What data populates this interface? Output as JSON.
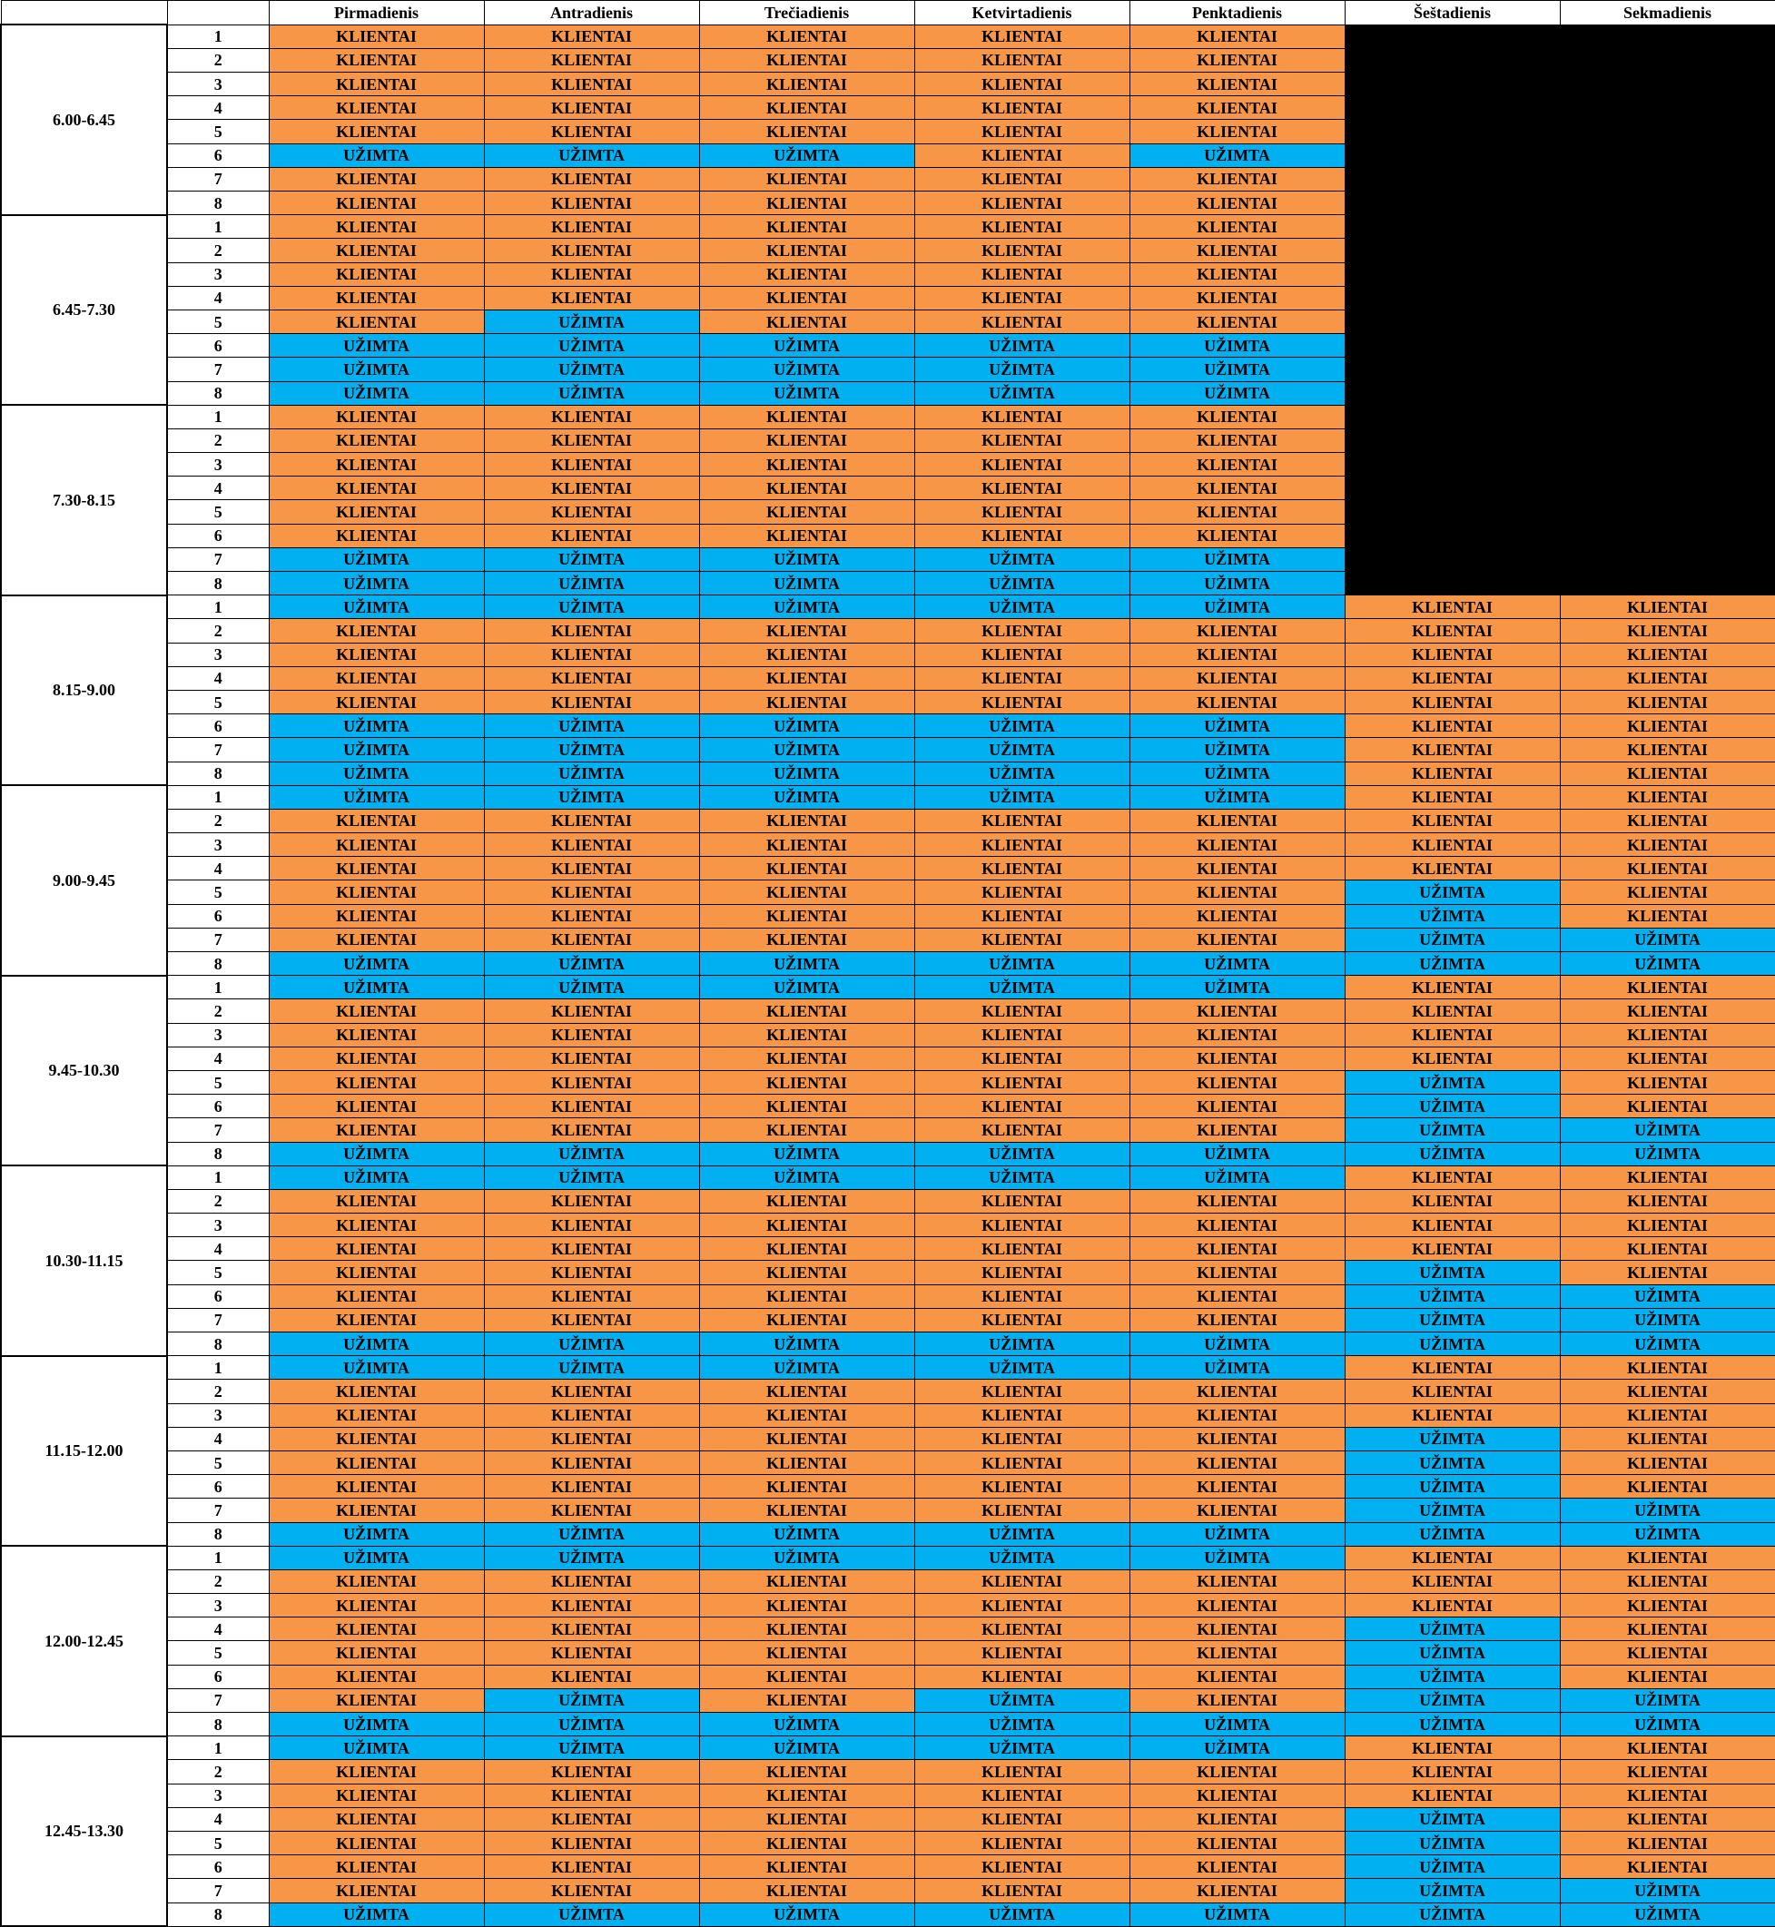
{
  "labels": {
    "K": "KLIENTAI",
    "U": "UŽIMTA"
  },
  "colors": {
    "K": "#f79646",
    "U": "#00b0f0",
    "X": "#000000"
  },
  "days": [
    "Pirmadienis",
    "Antradienis",
    "Trečiadienis",
    "Ketvirtadienis",
    "Penktadienis",
    "Šeštadienis",
    "Sekmadienis"
  ],
  "blocks": [
    {
      "time": "6.00-6.45",
      "rows": [
        "KKKKKXX",
        "KKKKKXX",
        "KKKKKXX",
        "KKKKKXX",
        "KKKKKXX",
        "UUUKUXX",
        "KKKKKXX",
        "KKKKKXX"
      ]
    },
    {
      "time": "6.45-7.30",
      "rows": [
        "KKKKKXX",
        "KKKKKXX",
        "KKKKKXX",
        "KKKKKXX",
        "KUKKKXX",
        "UUUUUXX",
        "UUUUUXX",
        "UUUUUXX"
      ]
    },
    {
      "time": "7.30-8.15",
      "rows": [
        "KKKKKXX",
        "KKKKKXX",
        "KKKKKXX",
        "KKKKKXX",
        "KKKKKXX",
        "KKKKKXX",
        "UUUUUXX",
        "UUUUUXX"
      ]
    },
    {
      "time": "8.15-9.00",
      "rows": [
        "UUUUUKK",
        "KKKKKKK",
        "KKKKKKK",
        "KKKKKKK",
        "KKKKKKK",
        "UUUUUKK",
        "UUUUUKK",
        "UUUUUKK"
      ]
    },
    {
      "time": "9.00-9.45",
      "rows": [
        "UUUUUKK",
        "KKKKKKK",
        "KKKKKKK",
        "KKKKKKK",
        "KKKKKUK",
        "KKKKKUK",
        "KKKKKUU",
        "UUUUUUU"
      ]
    },
    {
      "time": "9.45-10.30",
      "rows": [
        "UUUUUKK",
        "KKKKKKK",
        "KKKKKKK",
        "KKKKKKK",
        "KKKKKUK",
        "KKKKKUK",
        "KKKKKUU",
        "UUUUUUU"
      ]
    },
    {
      "time": "10.30-11.15",
      "rows": [
        "UUUUUKK",
        "KKKKKKK",
        "KKKKKKK",
        "KKKKKKK",
        "KKKKKUK",
        "KKKKKUU",
        "KKKKKUU",
        "UUUUUUU"
      ]
    },
    {
      "time": "11.15-12.00",
      "rows": [
        "UUUUUKK",
        "KKKKKKK",
        "KKKKKKK",
        "KKKKKUK",
        "KKKKKUK",
        "KKKKKUK",
        "KKKKKUU",
        "UUUUUUU"
      ]
    },
    {
      "time": "12.00-12.45",
      "rows": [
        "UUUUUKK",
        "KKKKKKK",
        "KKKKKKK",
        "KKKKKUK",
        "KKKKKUK",
        "KKKKKUK",
        "KUKUKUU",
        "UUUUUUU"
      ]
    },
    {
      "time": "12.45-13.30",
      "rows": [
        "UUUUUKK",
        "KKKKKKK",
        "KKKKKKK",
        "KKKKKUK",
        "KKKKKUK",
        "KKKKKUK",
        "KKKKKUU",
        "UUUUUUU"
      ]
    }
  ]
}
